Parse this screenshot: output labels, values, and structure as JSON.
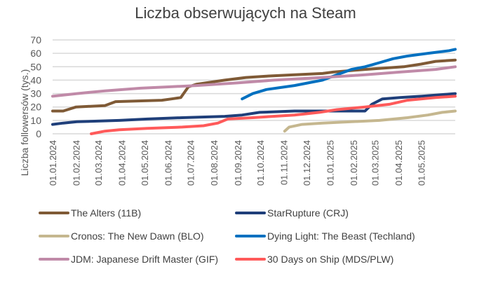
{
  "chart_data": {
    "type": "line",
    "title": "Liczba obserwujących na Steam",
    "xlabel": "",
    "ylabel": "Liczba followersów (tys.)",
    "x_unit": "days since 01.01.2024",
    "xlim": [
      0,
      531
    ],
    "ylim": [
      0,
      70
    ],
    "yticks": [
      "0",
      "10",
      "20",
      "30",
      "40",
      "50",
      "60",
      "70"
    ],
    "xticks": [
      {
        "label": "01.01.2024",
        "day": 0
      },
      {
        "label": "01.02.2024",
        "day": 31
      },
      {
        "label": "01.03.2024",
        "day": 60
      },
      {
        "label": "01.04.2024",
        "day": 91
      },
      {
        "label": "01.05.2024",
        "day": 121
      },
      {
        "label": "01.06.2024",
        "day": 152
      },
      {
        "label": "01.07.2024",
        "day": 182
      },
      {
        "label": "01.08.2024",
        "day": 213
      },
      {
        "label": "01.09.2024",
        "day": 244
      },
      {
        "label": "01.10.2024",
        "day": 274
      },
      {
        "label": "01.11.2024",
        "day": 305
      },
      {
        "label": "01.12.2024",
        "day": 335
      },
      {
        "label": "01.01.2025",
        "day": 366
      },
      {
        "label": "01.02.2025",
        "day": 397
      },
      {
        "label": "01.03.2025",
        "day": 425
      },
      {
        "label": "01.04.2025",
        "day": 456
      },
      {
        "label": "01.05.2025",
        "day": 486
      }
    ],
    "grid": true,
    "legend_placement": "bottom",
    "series": [
      {
        "name": "The Alters (11B)",
        "color": "#7f5a36",
        "x": [
          0,
          14,
          31,
          69,
          83,
          144,
          157,
          169,
          179,
          190,
          227,
          255,
          282,
          319,
          356,
          370,
          412,
          463,
          486,
          505,
          531
        ],
        "y": [
          17,
          17,
          20,
          21,
          24,
          25,
          26,
          27,
          35,
          37,
          40,
          42,
          43,
          44,
          45,
          46,
          48,
          50,
          52,
          54,
          55
        ]
      },
      {
        "name": "StarRupture (CRJ)",
        "color": "#1f3f7a",
        "x": [
          0,
          14,
          32,
          88,
          125,
          171,
          227,
          250,
          273,
          319,
          412,
          421,
          435,
          458,
          486,
          531
        ],
        "y": [
          7,
          8,
          9,
          10,
          11,
          12,
          13,
          14,
          16,
          17,
          17,
          22,
          26,
          27,
          28,
          30
        ]
      },
      {
        "name": "Cronos: The New Dawn (BLO)",
        "color": "#c5b78f",
        "x": [
          306,
          312,
          329,
          356,
          394,
          431,
          468,
          495,
          514,
          531
        ],
        "y": [
          2,
          5,
          7,
          8,
          9,
          10,
          12,
          14,
          16,
          17
        ]
      },
      {
        "name": "Dying Light: The Beast (Techland)",
        "color": "#0070c0",
        "x": [
          250,
          264,
          282,
          319,
          356,
          375,
          394,
          412,
          431,
          449,
          468,
          495,
          523,
          531
        ],
        "y": [
          26,
          30,
          33,
          36,
          40,
          44,
          48,
          50,
          53,
          56,
          58,
          60,
          62,
          63
        ]
      },
      {
        "name": "JDM: Japanese Drift Master (GIF)",
        "color": "#c08aa8",
        "x": [
          0,
          32,
          69,
          116,
          153,
          190,
          245,
          292,
          356,
          412,
          458,
          505,
          531
        ],
        "y": [
          28,
          30,
          32,
          34,
          35,
          36,
          38,
          40,
          42,
          44,
          46,
          48,
          50
        ]
      },
      {
        "name": "30 Days on Ship (MDS/PLW)",
        "color": "#ff5a5a",
        "x": [
          51,
          69,
          88,
          125,
          171,
          199,
          218,
          231,
          264,
          319,
          352,
          375,
          412,
          444,
          468,
          505,
          531
        ],
        "y": [
          0,
          2,
          3,
          4,
          5,
          6,
          8,
          11,
          12,
          14,
          16,
          18,
          20,
          22,
          25,
          27,
          28
        ]
      }
    ]
  }
}
